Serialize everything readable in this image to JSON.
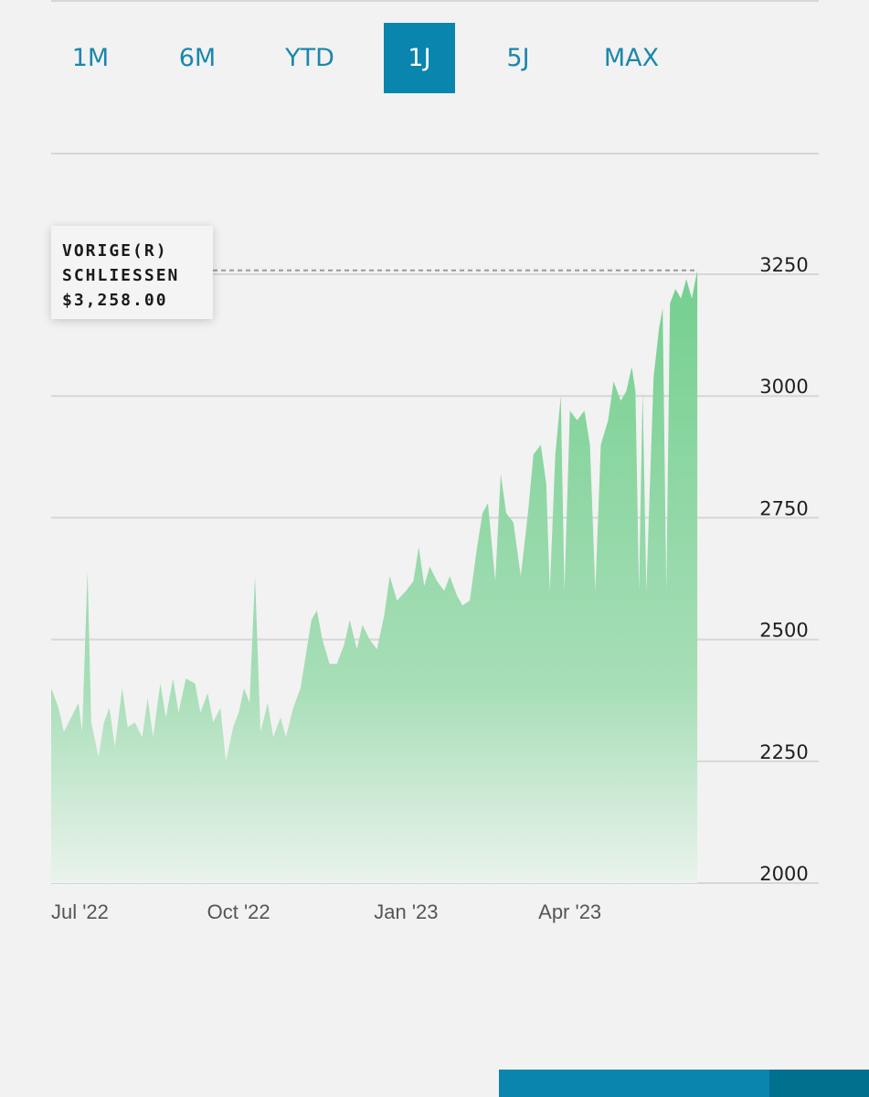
{
  "range_tabs": [
    {
      "label": "1M",
      "active": false
    },
    {
      "label": "6M",
      "active": false
    },
    {
      "label": "YTD",
      "active": false
    },
    {
      "label": "1J",
      "active": true
    },
    {
      "label": "5J",
      "active": false
    },
    {
      "label": "MAX",
      "active": false
    }
  ],
  "tooltip": {
    "line1": "VORIGE(R)",
    "line2": "SCHLIESSEN",
    "value": "$3,258.00"
  },
  "colors": {
    "accent": "#0a85ad",
    "tab_text": "#1a87ad",
    "area_top": "#74cf8f",
    "area_bottom": "#eaf3ec",
    "gridline": "#d6d6d6"
  },
  "chart_data": {
    "type": "area",
    "title": "",
    "xlabel": "",
    "ylabel": "",
    "ylim": [
      2000,
      3250
    ],
    "y_ticks": [
      3250,
      3000,
      2750,
      2500,
      2250,
      2000
    ],
    "x_tick_labels": [
      {
        "label": "Jul '22",
        "date": "2022-07-01"
      },
      {
        "label": "Oct '22",
        "date": "2022-10-01"
      },
      {
        "label": "Jan '23",
        "date": "2023-01-01"
      },
      {
        "label": "Apr '23",
        "date": "2023-04-01"
      }
    ],
    "x_start": "2022-06-20",
    "x_end": "2023-06-20",
    "reference_value": 3258,
    "series": [
      {
        "points": [
          [
            "2022-06-20",
            2400
          ],
          [
            "2022-06-24",
            2360
          ],
          [
            "2022-06-27",
            2310
          ],
          [
            "2022-07-01",
            2340
          ],
          [
            "2022-07-05",
            2370
          ],
          [
            "2022-07-07",
            2310
          ],
          [
            "2022-07-10",
            2640
          ],
          [
            "2022-07-12",
            2330
          ],
          [
            "2022-07-16",
            2260
          ],
          [
            "2022-07-19",
            2330
          ],
          [
            "2022-07-22",
            2360
          ],
          [
            "2022-07-25",
            2280
          ],
          [
            "2022-07-29",
            2400
          ],
          [
            "2022-08-01",
            2320
          ],
          [
            "2022-08-05",
            2330
          ],
          [
            "2022-08-09",
            2300
          ],
          [
            "2022-08-12",
            2380
          ],
          [
            "2022-08-15",
            2300
          ],
          [
            "2022-08-19",
            2410
          ],
          [
            "2022-08-22",
            2340
          ],
          [
            "2022-08-26",
            2420
          ],
          [
            "2022-08-29",
            2350
          ],
          [
            "2022-09-02",
            2420
          ],
          [
            "2022-09-07",
            2410
          ],
          [
            "2022-09-10",
            2350
          ],
          [
            "2022-09-14",
            2390
          ],
          [
            "2022-09-17",
            2330
          ],
          [
            "2022-09-21",
            2360
          ],
          [
            "2022-09-24",
            2250
          ],
          [
            "2022-09-28",
            2320
          ],
          [
            "2022-10-01",
            2350
          ],
          [
            "2022-10-04",
            2400
          ],
          [
            "2022-10-07",
            2370
          ],
          [
            "2022-10-10",
            2630
          ],
          [
            "2022-10-13",
            2310
          ],
          [
            "2022-10-17",
            2370
          ],
          [
            "2022-10-20",
            2300
          ],
          [
            "2022-10-24",
            2340
          ],
          [
            "2022-10-27",
            2300
          ],
          [
            "2022-10-31",
            2360
          ],
          [
            "2022-11-04",
            2400
          ],
          [
            "2022-11-07",
            2470
          ],
          [
            "2022-11-10",
            2540
          ],
          [
            "2022-11-13",
            2560
          ],
          [
            "2022-11-16",
            2500
          ],
          [
            "2022-11-20",
            2450
          ],
          [
            "2022-11-24",
            2450
          ],
          [
            "2022-11-28",
            2490
          ],
          [
            "2022-12-01",
            2540
          ],
          [
            "2022-12-05",
            2480
          ],
          [
            "2022-12-08",
            2530
          ],
          [
            "2022-12-12",
            2500
          ],
          [
            "2022-12-16",
            2480
          ],
          [
            "2022-12-20",
            2550
          ],
          [
            "2022-12-23",
            2630
          ],
          [
            "2022-12-27",
            2580
          ],
          [
            "2023-01-01",
            2600
          ],
          [
            "2023-01-05",
            2620
          ],
          [
            "2023-01-08",
            2690
          ],
          [
            "2023-01-11",
            2610
          ],
          [
            "2023-01-14",
            2650
          ],
          [
            "2023-01-18",
            2620
          ],
          [
            "2023-01-22",
            2600
          ],
          [
            "2023-01-25",
            2630
          ],
          [
            "2023-01-29",
            2590
          ],
          [
            "2023-02-01",
            2570
          ],
          [
            "2023-02-05",
            2580
          ],
          [
            "2023-02-09",
            2690
          ],
          [
            "2023-02-12",
            2760
          ],
          [
            "2023-02-15",
            2780
          ],
          [
            "2023-02-19",
            2620
          ],
          [
            "2023-02-22",
            2840
          ],
          [
            "2023-02-25",
            2760
          ],
          [
            "2023-03-01",
            2740
          ],
          [
            "2023-03-05",
            2630
          ],
          [
            "2023-03-09",
            2760
          ],
          [
            "2023-03-12",
            2880
          ],
          [
            "2023-03-16",
            2900
          ],
          [
            "2023-03-19",
            2820
          ],
          [
            "2023-03-21",
            2600
          ],
          [
            "2023-03-24",
            2880
          ],
          [
            "2023-03-27",
            3000
          ],
          [
            "2023-03-29",
            2600
          ],
          [
            "2023-04-01",
            2970
          ],
          [
            "2023-04-05",
            2950
          ],
          [
            "2023-04-09",
            2970
          ],
          [
            "2023-04-12",
            2900
          ],
          [
            "2023-04-15",
            2600
          ],
          [
            "2023-04-18",
            2900
          ],
          [
            "2023-04-22",
            2950
          ],
          [
            "2023-04-25",
            3030
          ],
          [
            "2023-04-29",
            2990
          ],
          [
            "2023-05-02",
            3010
          ],
          [
            "2023-05-05",
            3060
          ],
          [
            "2023-05-07",
            3010
          ],
          [
            "2023-05-09",
            2600
          ],
          [
            "2023-05-11",
            3010
          ],
          [
            "2023-05-13",
            2600
          ],
          [
            "2023-05-17",
            3040
          ],
          [
            "2023-05-20",
            3140
          ],
          [
            "2023-05-22",
            3180
          ],
          [
            "2023-05-24",
            2600
          ],
          [
            "2023-05-26",
            3190
          ],
          [
            "2023-05-29",
            3220
          ],
          [
            "2023-06-01",
            3200
          ],
          [
            "2023-06-04",
            3240
          ],
          [
            "2023-06-07",
            3200
          ],
          [
            "2023-06-10",
            3258
          ]
        ]
      }
    ]
  }
}
